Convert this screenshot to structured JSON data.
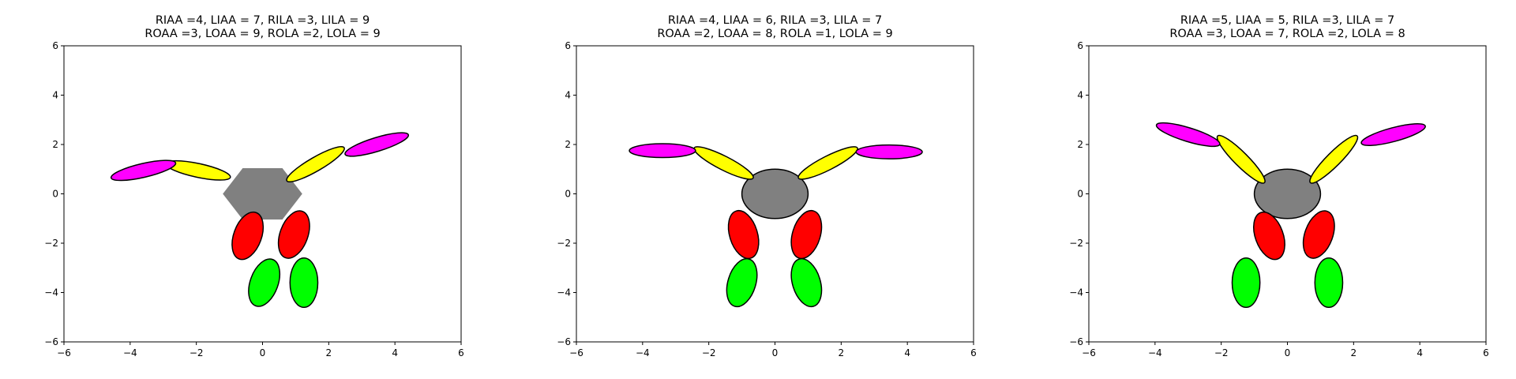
{
  "chart_data": [
    {
      "type": "scatter",
      "title": [
        "RIAA =4, LIAA = 7, RILA =3, LILA = 9",
        "ROAA =3, LOAA = 9, ROLA =2, LOLA = 9"
      ],
      "xlim": [
        -6,
        6
      ],
      "ylim": [
        -6,
        6
      ],
      "xticks": [
        -6,
        -4,
        -2,
        0,
        2,
        4,
        6
      ],
      "yticks": [
        -6,
        -4,
        -2,
        0,
        2,
        4,
        6
      ],
      "grid": false,
      "body": {
        "shape": "hexagon",
        "color": "#808080",
        "center": [
          0,
          0
        ],
        "radius": 1.2
      },
      "limbs": [
        {
          "part": "right-upper-arm",
          "color": "#ffff00",
          "center": [
            -1.95,
            0.95
          ],
          "rx": 1.0,
          "ry": 0.28,
          "angle_deg": -12
        },
        {
          "part": "right-forearm",
          "color": "#ff00ff",
          "center": [
            -3.6,
            0.95
          ],
          "rx": 1.0,
          "ry": 0.28,
          "angle_deg": 13
        },
        {
          "part": "left-upper-arm",
          "color": "#ffff00",
          "center": [
            1.6,
            1.2
          ],
          "rx": 1.0,
          "ry": 0.28,
          "angle_deg": 30
        },
        {
          "part": "left-forearm",
          "color": "#ff00ff",
          "center": [
            3.45,
            2.0
          ],
          "rx": 1.0,
          "ry": 0.28,
          "angle_deg": 17
        },
        {
          "part": "right-thigh",
          "color": "#ff0000",
          "center": [
            -0.45,
            -1.7
          ],
          "rx": 0.42,
          "ry": 1.0,
          "angle_deg": -20
        },
        {
          "part": "left-thigh",
          "color": "#ff0000",
          "center": [
            0.95,
            -1.65
          ],
          "rx": 0.42,
          "ry": 1.0,
          "angle_deg": -20
        },
        {
          "part": "right-shin",
          "color": "#00ff00",
          "center": [
            0.05,
            -3.6
          ],
          "rx": 0.42,
          "ry": 1.0,
          "angle_deg": -20
        },
        {
          "part": "left-shin",
          "color": "#00ff00",
          "center": [
            1.25,
            -3.6
          ],
          "rx": 0.42,
          "ry": 1.0,
          "angle_deg": 0
        }
      ]
    },
    {
      "type": "scatter",
      "title": [
        "RIAA =4, LIAA = 6, RILA =3, LILA = 7",
        "ROAA =2, LOAA = 8, ROLA =1, LOLA = 9"
      ],
      "xlim": [
        -6,
        6
      ],
      "ylim": [
        -6,
        6
      ],
      "xticks": [
        -6,
        -4,
        -2,
        0,
        2,
        4,
        6
      ],
      "yticks": [
        -6,
        -4,
        -2,
        0,
        2,
        4,
        6
      ],
      "grid": false,
      "body": {
        "shape": "ellipse",
        "color": "#808080",
        "center": [
          0,
          0
        ],
        "rx": 1.0,
        "ry": 1.0
      },
      "limbs": [
        {
          "part": "right-upper-arm",
          "color": "#ffff00",
          "center": [
            -1.55,
            1.25
          ],
          "rx": 1.0,
          "ry": 0.28,
          "angle_deg": -27
        },
        {
          "part": "right-forearm",
          "color": "#ff00ff",
          "center": [
            -3.4,
            1.75
          ],
          "rx": 1.0,
          "ry": 0.28,
          "angle_deg": 0
        },
        {
          "part": "left-upper-arm",
          "color": "#ffff00",
          "center": [
            1.6,
            1.25
          ],
          "rx": 1.0,
          "ry": 0.28,
          "angle_deg": 27
        },
        {
          "part": "left-forearm",
          "color": "#ff00ff",
          "center": [
            3.45,
            1.7
          ],
          "rx": 1.0,
          "ry": 0.28,
          "angle_deg": 0
        },
        {
          "part": "right-thigh",
          "color": "#ff0000",
          "center": [
            -0.95,
            -1.65
          ],
          "rx": 0.42,
          "ry": 1.0,
          "angle_deg": 17
        },
        {
          "part": "left-thigh",
          "color": "#ff0000",
          "center": [
            0.95,
            -1.65
          ],
          "rx": 0.42,
          "ry": 1.0,
          "angle_deg": -17
        },
        {
          "part": "right-shin",
          "color": "#00ff00",
          "center": [
            -1.0,
            -3.6
          ],
          "rx": 0.42,
          "ry": 1.0,
          "angle_deg": -17
        },
        {
          "part": "left-shin",
          "color": "#00ff00",
          "center": [
            0.95,
            -3.6
          ],
          "rx": 0.42,
          "ry": 1.0,
          "angle_deg": 17
        }
      ]
    },
    {
      "type": "scatter",
      "title": [
        "RIAA =5, LIAA = 5, RILA =3, LILA = 7",
        "ROAA =3, LOAA = 7, ROLA =2, LOLA = 8"
      ],
      "xlim": [
        -6,
        6
      ],
      "ylim": [
        -6,
        6
      ],
      "xticks": [
        -6,
        -4,
        -2,
        0,
        2,
        4,
        6
      ],
      "yticks": [
        -6,
        -4,
        -2,
        0,
        2,
        4,
        6
      ],
      "grid": false,
      "body": {
        "shape": "ellipse",
        "color": "#808080",
        "center": [
          0,
          0
        ],
        "rx": 1.0,
        "ry": 1.0
      },
      "limbs": [
        {
          "part": "right-upper-arm",
          "color": "#ffff00",
          "center": [
            -1.4,
            1.4
          ],
          "rx": 1.0,
          "ry": 0.28,
          "angle_deg": -45
        },
        {
          "part": "right-forearm",
          "color": "#ff00ff",
          "center": [
            -3.0,
            2.4
          ],
          "rx": 1.0,
          "ry": 0.28,
          "angle_deg": -17
        },
        {
          "part": "left-upper-arm",
          "color": "#ffff00",
          "center": [
            1.4,
            1.4
          ],
          "rx": 1.0,
          "ry": 0.28,
          "angle_deg": 45
        },
        {
          "part": "left-forearm",
          "color": "#ff00ff",
          "center": [
            3.2,
            2.4
          ],
          "rx": 1.0,
          "ry": 0.28,
          "angle_deg": 15
        },
        {
          "part": "right-thigh",
          "color": "#ff0000",
          "center": [
            -0.55,
            -1.7
          ],
          "rx": 0.42,
          "ry": 1.0,
          "angle_deg": 20
        },
        {
          "part": "left-thigh",
          "color": "#ff0000",
          "center": [
            0.95,
            -1.65
          ],
          "rx": 0.42,
          "ry": 1.0,
          "angle_deg": -20
        },
        {
          "part": "right-shin",
          "color": "#00ff00",
          "center": [
            -1.25,
            -3.6
          ],
          "rx": 0.42,
          "ry": 1.0,
          "angle_deg": 0
        },
        {
          "part": "left-shin",
          "color": "#00ff00",
          "center": [
            1.25,
            -3.6
          ],
          "rx": 0.42,
          "ry": 1.0,
          "angle_deg": 0
        }
      ]
    }
  ]
}
